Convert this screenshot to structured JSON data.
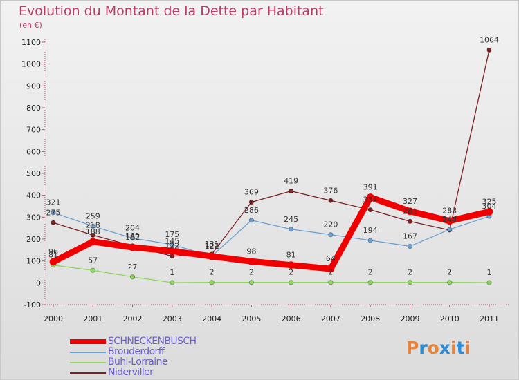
{
  "title": "Evolution du Montant de la Dette par Habitant",
  "unit_label": "(en €)",
  "logo": {
    "text": "Proxiti",
    "letter_colors": [
      "#e8833a",
      "#2e8bd6",
      "#e8833a",
      "#2e8bd6",
      "#e8833a",
      "#2e8bd6",
      "#e8833a"
    ]
  },
  "chart_data": {
    "type": "line",
    "x": [
      "2000",
      "2001",
      "2002",
      "2003",
      "2004",
      "2005",
      "2006",
      "2007",
      "2008",
      "2009",
      "2010",
      "2011"
    ],
    "y_ticks": [
      "-100",
      "0",
      "100",
      "200",
      "300",
      "400",
      "500",
      "600",
      "700",
      "800",
      "900",
      "1000",
      "1100"
    ],
    "ylim": [
      -100,
      1100
    ],
    "grid": false,
    "legend_position": "bottom-left",
    "series": [
      {
        "name": "Niderviller",
        "color": "#7a1f24",
        "values": [
          275,
          218,
          169,
          122,
          131,
          369,
          419,
          376,
          334,
          281,
          241,
          1064
        ],
        "labels": [
          "275",
          "218",
          "169",
          "122",
          "131",
          "369",
          "419",
          "376",
          "334",
          "281",
          "241",
          "1064"
        ]
      },
      {
        "name": "Brouderdorff",
        "color": "#6b9fd1",
        "values": [
          321,
          259,
          204,
          175,
          122,
          286,
          245,
          220,
          194,
          167,
          244,
          304
        ],
        "labels": [
          "321",
          "259",
          "204",
          "175",
          "122",
          "286",
          "245",
          "220",
          "194",
          "167",
          "244",
          "304"
        ]
      },
      {
        "name": "Buhl-Lorraine",
        "color": "#8ed65c",
        "values": [
          81,
          57,
          27,
          1,
          2,
          2,
          2,
          2,
          2,
          2,
          2,
          1
        ],
        "labels": [
          "81",
          "57",
          "27",
          "1",
          "2",
          "2",
          "2",
          "2",
          "2",
          "2",
          "2",
          "1"
        ]
      },
      {
        "name": "SCHNECKENBUSCH",
        "color": "#f00000",
        "values": [
          96,
          188,
          162,
          145,
          121,
          98,
          81,
          64,
          391,
          327,
          283,
          325
        ],
        "labels": [
          "96",
          "188",
          "162",
          "145",
          "121",
          "98",
          "81",
          "64",
          "391",
          "327",
          "283",
          "325"
        ]
      }
    ]
  },
  "legend": [
    {
      "label": "SCHNECKENBUSCH",
      "color": "#f00000"
    },
    {
      "label": "Brouderdorff",
      "color": "#6b9fd1"
    },
    {
      "label": "Buhl-Lorraine",
      "color": "#8ed65c"
    },
    {
      "label": "Niderviller",
      "color": "#7a1f24"
    }
  ]
}
